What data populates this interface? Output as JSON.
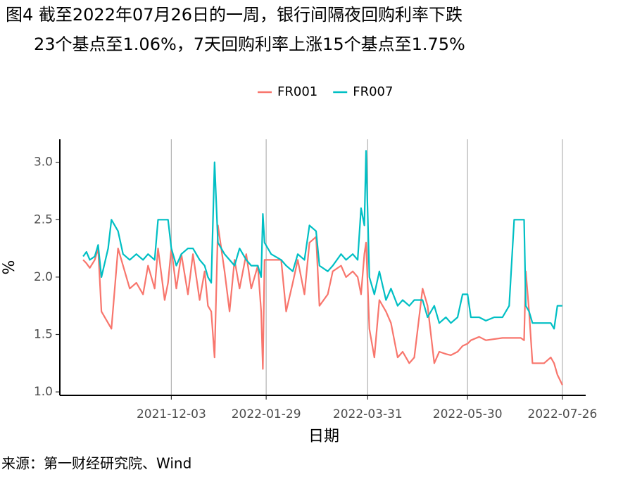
{
  "chart_data": {
    "type": "line",
    "title": [
      "图4  截至2022年07月26日的一周，银行间隔夜回购利率下跌",
      "23个基点至1.06%，7天回购利率上涨15个基点至1.75%"
    ],
    "x_label": "日期",
    "y_label": "%",
    "source": "来源：第一财经研究院、Wind",
    "legend_position": "top",
    "grid": "vertical",
    "xlim": [
      "2021-09-27",
      "2022-08-09"
    ],
    "xticks": [
      "2021-12-03",
      "2022-01-29",
      "2022-03-31",
      "2022-05-30",
      "2022-07-26"
    ],
    "ylim": [
      0.97,
      3.2
    ],
    "yticks": [
      {
        "value": 1,
        "label": "1.0"
      },
      1.5,
      {
        "value": 2,
        "label": "2.0"
      },
      2.5,
      {
        "value": 3,
        "label": "3.0"
      }
    ],
    "x": [
      "2021-10-11",
      "2021-10-13",
      "2021-10-15",
      "2021-10-18",
      "2021-10-20",
      "2021-10-22",
      "2021-10-26",
      "2021-10-28",
      "2021-11-01",
      "2021-11-04",
      "2021-11-08",
      "2021-11-12",
      "2021-11-16",
      "2021-11-19",
      "2021-11-23",
      "2021-11-25",
      "2021-11-29",
      "2021-12-01",
      "2021-12-03",
      "2021-12-06",
      "2021-12-09",
      "2021-12-13",
      "2021-12-16",
      "2021-12-20",
      "2021-12-23",
      "2021-12-25",
      "2021-12-27",
      "2021-12-29",
      "2021-12-31",
      "2022-01-04",
      "2022-01-07",
      "2022-01-10",
      "2022-01-13",
      "2022-01-17",
      "2022-01-20",
      "2022-01-24",
      "2022-01-26",
      "2022-01-27",
      "2022-01-28",
      "2022-02-01",
      "2022-02-07",
      "2022-02-10",
      "2022-02-14",
      "2022-02-17",
      "2022-02-21",
      "2022-02-24",
      "2022-02-28",
      "2022-03-02",
      "2022-03-07",
      "2022-03-10",
      "2022-03-15",
      "2022-03-18",
      "2022-03-22",
      "2022-03-25",
      "2022-03-27",
      "2022-03-29",
      "2022-03-30",
      "2022-04-01",
      "2022-04-04",
      "2022-04-07",
      "2022-04-11",
      "2022-04-14",
      "2022-04-18",
      "2022-04-21",
      "2022-04-25",
      "2022-04-28",
      "2022-05-03",
      "2022-05-06",
      "2022-05-10",
      "2022-05-13",
      "2022-05-17",
      "2022-05-20",
      "2022-05-24",
      "2022-05-27",
      "2022-05-30",
      "2022-06-01",
      "2022-06-06",
      "2022-06-10",
      "2022-06-15",
      "2022-06-20",
      "2022-06-24",
      "2022-06-27",
      "2022-07-01",
      "2022-07-03",
      "2022-07-04",
      "2022-07-06",
      "2022-07-08",
      "2022-07-12",
      "2022-07-15",
      "2022-07-19",
      "2022-07-21",
      "2022-07-23",
      "2022-07-26"
    ],
    "series": [
      {
        "name": "FR001",
        "color": "#f8766d",
        "values": [
          2.15,
          2.12,
          2.08,
          2.15,
          2.25,
          1.7,
          1.6,
          1.55,
          2.25,
          2.1,
          1.9,
          1.95,
          1.85,
          2.1,
          1.9,
          2.25,
          1.8,
          1.95,
          2.25,
          1.9,
          2.2,
          1.85,
          2.2,
          1.8,
          2.05,
          1.75,
          1.7,
          1.3,
          2.45,
          2.05,
          1.7,
          2.15,
          1.9,
          2.2,
          1.9,
          2.1,
          1.7,
          1.2,
          2.15,
          2.15,
          2.15,
          1.7,
          1.95,
          2.15,
          1.85,
          2.3,
          2.35,
          1.75,
          1.85,
          2.05,
          2.1,
          2.0,
          2.05,
          2.0,
          1.85,
          2.2,
          2.3,
          1.55,
          1.3,
          1.8,
          1.7,
          1.6,
          1.3,
          1.35,
          1.25,
          1.3,
          1.9,
          1.75,
          1.25,
          1.35,
          1.33,
          1.32,
          1.35,
          1.4,
          1.42,
          1.45,
          1.48,
          1.45,
          1.46,
          1.47,
          1.47,
          1.47,
          1.47,
          1.45,
          2.05,
          1.7,
          1.25,
          1.25,
          1.25,
          1.3,
          1.25,
          1.15,
          1.06
        ]
      },
      {
        "name": "FR007",
        "color": "#00bfc4",
        "values": [
          2.18,
          2.22,
          2.15,
          2.18,
          2.28,
          2.0,
          2.25,
          2.5,
          2.4,
          2.2,
          2.15,
          2.2,
          2.15,
          2.2,
          2.15,
          2.5,
          2.5,
          2.5,
          2.25,
          2.1,
          2.2,
          2.25,
          2.25,
          2.15,
          2.1,
          2.0,
          1.95,
          3.0,
          2.3,
          2.2,
          2.15,
          2.1,
          2.25,
          2.15,
          2.1,
          2.1,
          2.0,
          2.55,
          2.3,
          2.2,
          2.15,
          2.1,
          2.05,
          2.2,
          2.15,
          2.45,
          2.4,
          2.1,
          2.05,
          2.1,
          2.2,
          2.15,
          2.2,
          2.15,
          2.6,
          2.45,
          3.1,
          2.0,
          1.85,
          2.05,
          1.8,
          1.9,
          1.75,
          1.8,
          1.75,
          1.8,
          1.8,
          1.65,
          1.75,
          1.6,
          1.65,
          1.6,
          1.65,
          1.85,
          1.85,
          1.65,
          1.65,
          1.62,
          1.65,
          1.65,
          1.75,
          2.5,
          2.5,
          2.5,
          1.75,
          1.7,
          1.6,
          1.6,
          1.6,
          1.6,
          1.55,
          1.75,
          1.75
        ]
      }
    ]
  }
}
